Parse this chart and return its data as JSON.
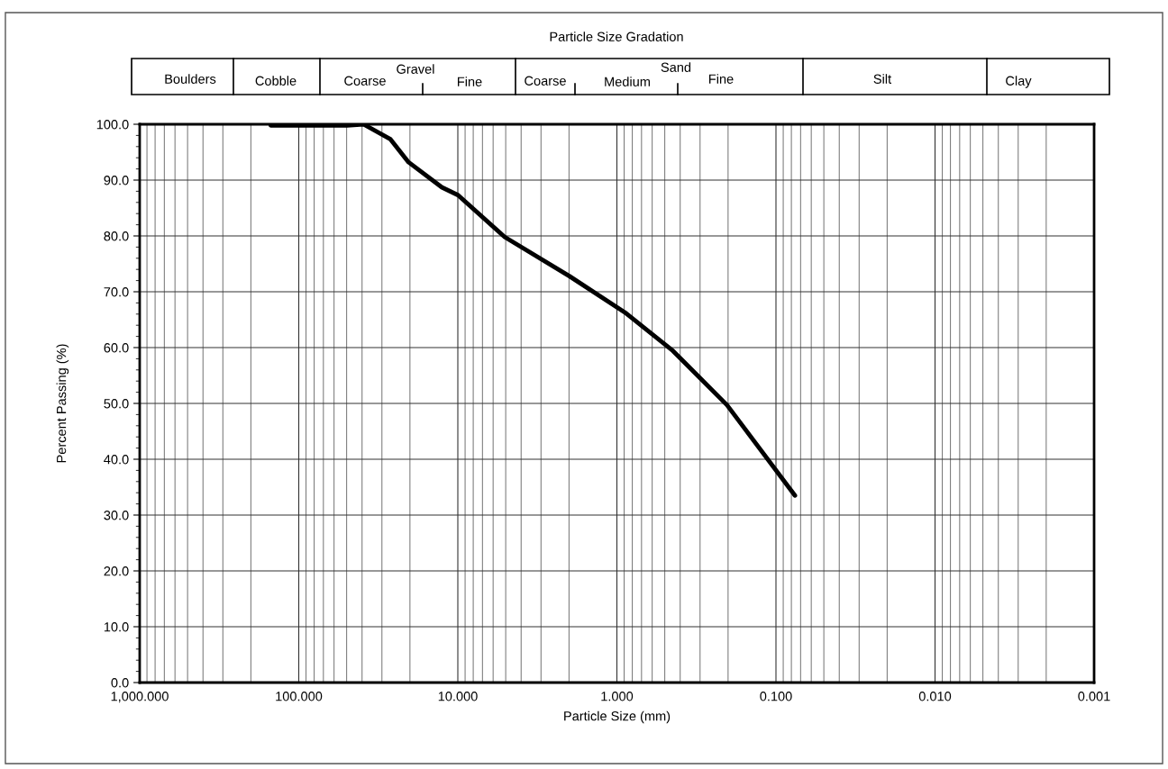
{
  "chart_data": {
    "type": "line",
    "title": "Particle Size Gradation",
    "xlabel": "Particle Size (mm)",
    "ylabel": "Percent Passing (%)",
    "x": [
      150,
      49.8,
      39.2,
      26.5,
      20.4,
      12.6,
      9.96,
      5.07,
      1.99,
      0.891,
      0.444,
      0.203,
      0.076
    ],
    "series": [
      {
        "color": "#000000",
        "values": [
          99.8,
          99.8,
          100,
          97.3,
          93.2,
          88.7,
          87.3,
          79.8,
          72.8,
          66.3,
          59.4,
          49.7,
          33.5
        ]
      }
    ],
    "log": "x",
    "xlim": [
      1000,
      0.001
    ],
    "ylim": [
      0,
      100
    ],
    "xticks": [
      {
        "value": 1000,
        "label": "1,000.000"
      },
      {
        "value": 100,
        "label": "100.000"
      },
      {
        "value": 10,
        "label": "10.000"
      },
      {
        "value": 1,
        "label": "1.000"
      },
      {
        "value": 0.1,
        "label": "0.100"
      },
      {
        "value": 0.01,
        "label": "0.010"
      },
      {
        "value": 0.001,
        "label": "0.001"
      }
    ],
    "yticks": [
      {
        "value": 0,
        "label": "0.0"
      },
      {
        "value": 10,
        "label": "10.0"
      },
      {
        "value": 20,
        "label": "20.0"
      },
      {
        "value": 30,
        "label": "30.0"
      },
      {
        "value": 40,
        "label": "40.0"
      },
      {
        "value": 50,
        "label": "50.0"
      },
      {
        "value": 60,
        "label": "60.0"
      },
      {
        "value": 70,
        "label": "70.0"
      },
      {
        "value": 80,
        "label": "80.0"
      },
      {
        "value": 90,
        "label": "90.0"
      },
      {
        "value": 100,
        "label": "100.0"
      }
    ],
    "grid": true,
    "marker": "none",
    "line_style": "solid",
    "annotations": [
      "Boulders",
      "Cobble",
      "Coarse",
      "Gravel",
      "Fine",
      "Coarse",
      "Medium",
      "Sand",
      "Fine",
      "Silt",
      "Clay"
    ]
  }
}
